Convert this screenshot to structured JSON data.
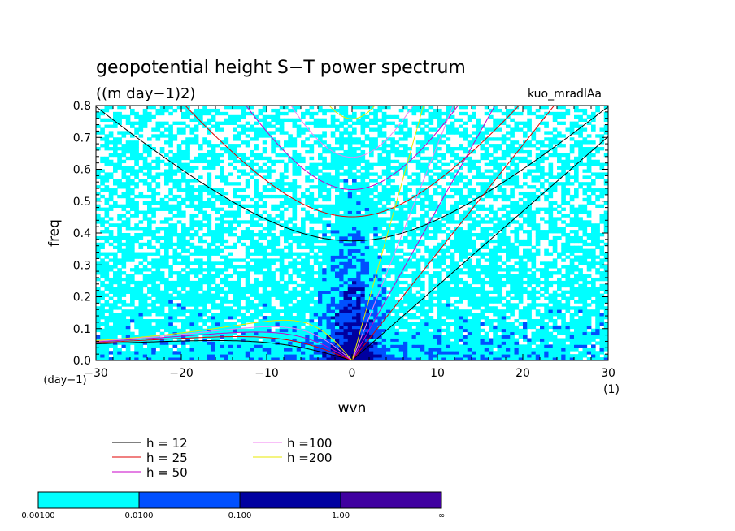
{
  "chart_data": {
    "type": "heatmap",
    "title": "geopotential height S−T power spectrum",
    "subtitle": "((m day−1)2)",
    "tag": "kuo_mradlAa",
    "xlabel": "wvn",
    "ylabel": "freq",
    "x_unit": "(1)",
    "y_unit": "(day−1)",
    "xlim": [
      -30,
      30
    ],
    "ylim": [
      0,
      0.8
    ],
    "x_ticks": [
      "−30",
      "−20",
      "−10",
      "0",
      "10",
      "20",
      "30"
    ],
    "x_tick_values": [
      -30,
      -20,
      -10,
      0,
      10,
      20,
      30
    ],
    "y_ticks": [
      "0.0",
      "0.1",
      "0.2",
      "0.3",
      "0.4",
      "0.5",
      "0.6",
      "0.7",
      "0.8"
    ],
    "y_tick_values": [
      0,
      0.1,
      0.2,
      0.3,
      0.4,
      0.5,
      0.6,
      0.7,
      0.8
    ],
    "dispersion_curves": [
      {
        "label": "h = 12",
        "h": 12,
        "color": "#000000"
      },
      {
        "label": "h = 25",
        "h": 25,
        "color": "#e00000"
      },
      {
        "label": "h = 50",
        "h": 50,
        "color": "#c800c8"
      },
      {
        "label": "h =100",
        "h": 100,
        "color": "#f080f0"
      },
      {
        "label": "h =200",
        "h": 200,
        "color": "#e8e800"
      }
    ],
    "colorbar": {
      "levels": [
        "0.00100",
        "0.0100",
        "0.100",
        "1.00",
        "∞"
      ],
      "colors": [
        "#00ffff",
        "#0050ff",
        "#0000a0",
        "#4000a0"
      ]
    }
  }
}
